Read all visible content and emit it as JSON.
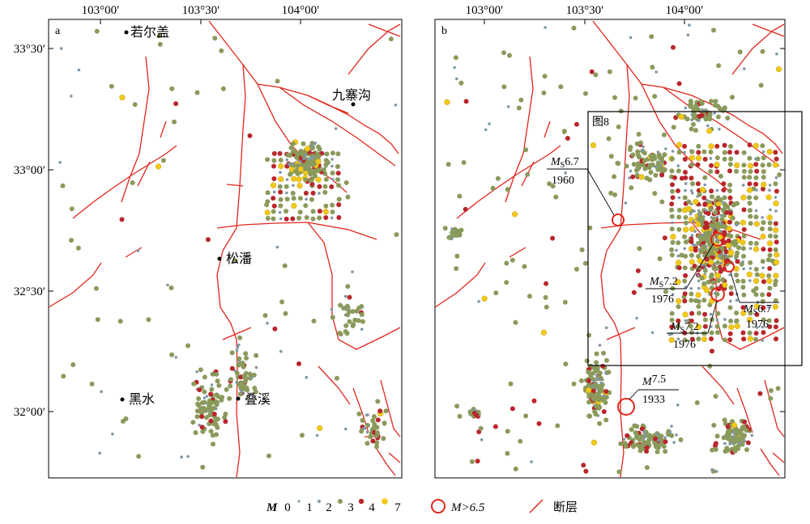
{
  "panel_a": {
    "label": "a",
    "top_ticks": [
      "103°00′",
      "103°30′",
      "104°00′"
    ],
    "left_ticks": [
      "33°30′",
      "33°00′",
      "32°30′",
      "32°00′"
    ],
    "places": [
      {
        "name": "若尔盖"
      },
      {
        "name": "九寨沟"
      },
      {
        "name": "松潘"
      },
      {
        "name": "黑水"
      },
      {
        "name": "叠溪"
      }
    ]
  },
  "panel_b": {
    "label": "b",
    "top_ticks": [
      "103°00′",
      "103°30′",
      "104°00′"
    ],
    "inset_label": "图8",
    "events": [
      {
        "mag_label": "M",
        "sub": "S",
        "value": "6.7",
        "year": "1960"
      },
      {
        "mag_label": "M",
        "sub": "S",
        "value": "7.2",
        "year": "1976"
      },
      {
        "mag_label": "M",
        "sub": "S",
        "value": "6.7",
        "year": "1976"
      },
      {
        "mag_label": "M",
        "sub": "S",
        "value": "7.2",
        "year": "1976"
      },
      {
        "mag_label": "M",
        "sub": "",
        "value": "7.5",
        "year": "1933"
      }
    ]
  },
  "legend": {
    "mag_title": "M",
    "scale_labels": [
      "0",
      "1",
      "2",
      "3",
      "4",
      "7"
    ],
    "scale_colors": [
      "#6b8796",
      "#6b8796",
      "#8a9a5b",
      "#8a9a5b",
      "#c0262c",
      "#f2c81a"
    ],
    "large_event_label": "M>6.5",
    "fault_label": "断层",
    "fault_color": "#e0261c",
    "large_event_color": "#e0261c"
  }
}
